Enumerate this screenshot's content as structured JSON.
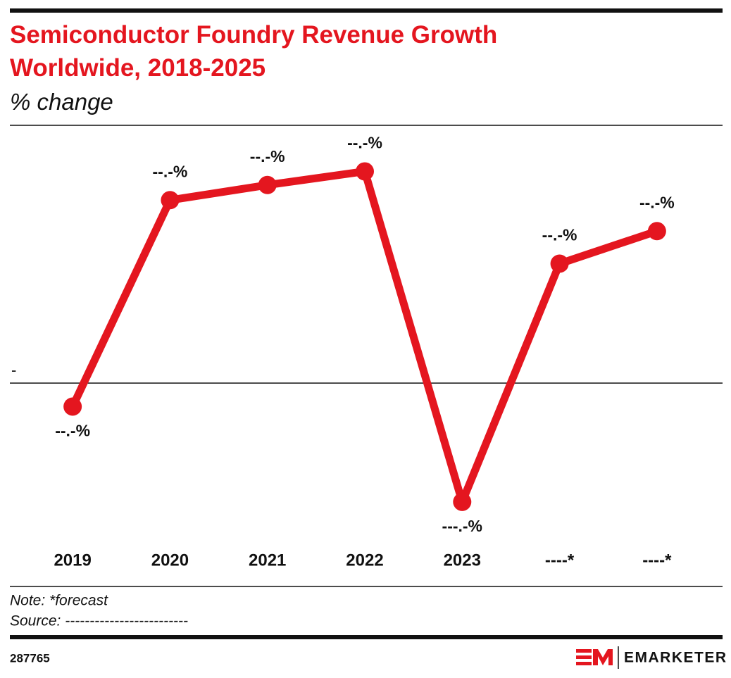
{
  "chart_data": {
    "type": "line",
    "title": "Semiconductor Foundry Revenue Growth Worldwide, 2018-2025",
    "subtitle": "% change",
    "categories": [
      "2019",
      "2020",
      "2021",
      "2022",
      "2023",
      "----*",
      "----*"
    ],
    "values": [
      -3.1,
      24.2,
      26.2,
      28,
      -15.7,
      15.8,
      20.1
    ],
    "value_labels": [
      "--.-%",
      "--.-%",
      "--.-%",
      "--.-%",
      "---.-%",
      "--.-%",
      "--.-%"
    ],
    "color": "#e4161f",
    "ylim": [
      -20,
      34
    ],
    "yticks": [
      {
        "value": 0,
        "label": "-"
      }
    ],
    "note": "Note: *forecast",
    "source": "Source: -------------------------",
    "chart_id": "287765",
    "brand": "EMARKETER"
  }
}
